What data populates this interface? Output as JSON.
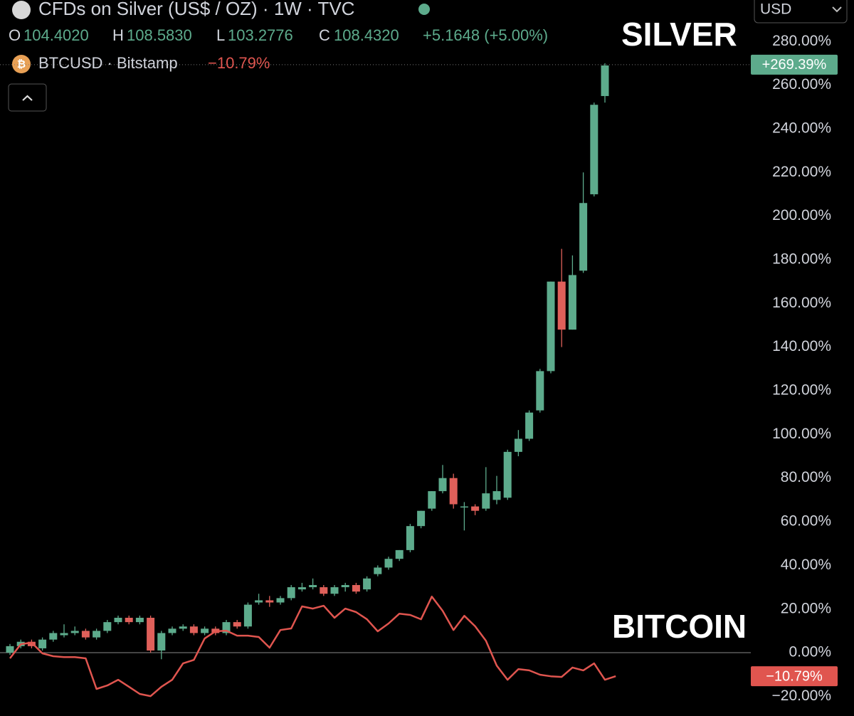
{
  "chart_data": {
    "type": "candlestick",
    "title": "CFDs on Silver (US$ / OZ) · 1W · TVC",
    "ohlc_labels": {
      "open": "104.4020",
      "high": "108.5830",
      "low": "103.2776",
      "close": "108.4320",
      "change": "+5.1648 (+5.00%)"
    },
    "currency": "USD",
    "annotations": [
      "SILVER",
      "BITCOIN"
    ],
    "up_color": "#5dab8c",
    "down_color": "#e0605a",
    "ylim": [
      -29,
      299
    ],
    "yticks": [
      {
        "value": -20,
        "label": "−20.00%"
      },
      {
        "value": 0,
        "label": "0.00%"
      },
      {
        "value": 20,
        "label": "20.00%"
      },
      {
        "value": 40,
        "label": "40.00%"
      },
      {
        "value": 60,
        "label": "60.00%"
      },
      {
        "value": 80,
        "label": "80.00%"
      },
      {
        "value": 100,
        "label": "100.00%"
      },
      {
        "value": 120,
        "label": "120.00%"
      },
      {
        "value": 140,
        "label": "140.00%"
      },
      {
        "value": 160,
        "label": "160.00%"
      },
      {
        "value": 180,
        "label": "180.00%"
      },
      {
        "value": 200,
        "label": "200.00%"
      },
      {
        "value": 220,
        "label": "220.00%"
      },
      {
        "value": 240,
        "label": "240.00%"
      },
      {
        "value": 260,
        "label": "260.00%"
      },
      {
        "value": 280,
        "label": "280.00%"
      }
    ],
    "series": [
      {
        "name": "CFDs on Silver",
        "type": "candlestick",
        "last_value": 269.39,
        "last_label": "+269.39%",
        "open": [
          0,
          3,
          5,
          2,
          6,
          8,
          9,
          10,
          7,
          10,
          14,
          16,
          14,
          16,
          1,
          9,
          11,
          12,
          9,
          11,
          9,
          14,
          12,
          23,
          24,
          23,
          25,
          29,
          30,
          30,
          27,
          30,
          31,
          29,
          36,
          39,
          43,
          47,
          58,
          66,
          74,
          80,
          67,
          67,
          66,
          70,
          71,
          92,
          98,
          111,
          129,
          170,
          148,
          175,
          210,
          255
        ],
        "high": [
          4,
          6,
          6,
          7,
          10,
          13,
          12,
          11,
          11,
          15,
          17,
          17,
          17,
          17,
          10,
          12,
          13,
          13,
          12,
          12,
          15,
          15,
          23,
          27,
          26,
          26,
          31,
          32,
          34,
          31,
          31,
          32,
          32,
          35,
          40,
          44,
          47,
          59,
          65,
          74,
          86,
          82,
          69,
          68,
          85,
          81,
          93,
          102,
          111,
          130,
          170,
          185,
          182,
          220,
          252,
          270
        ],
        "low": [
          -1,
          2,
          2,
          1,
          5,
          7,
          8,
          6,
          6,
          9,
          13,
          13,
          13,
          0,
          -3,
          8,
          10,
          8,
          8,
          8,
          8,
          11,
          11,
          22,
          21,
          22,
          24,
          28,
          29,
          26,
          26,
          28,
          27,
          28,
          35,
          38,
          42,
          46,
          57,
          65,
          73,
          66,
          56,
          63,
          65,
          68,
          70,
          90,
          97,
          110,
          128,
          140,
          148,
          174,
          209,
          252
        ],
        "close": [
          3,
          5,
          3,
          6,
          9,
          9,
          10,
          7,
          10,
          14,
          16,
          14,
          16,
          1,
          9,
          11,
          12,
          9,
          11,
          9,
          14,
          12,
          22,
          24,
          23,
          25,
          30,
          30,
          31,
          27,
          30,
          31,
          28,
          34,
          39,
          43,
          47,
          58,
          65,
          74,
          80,
          68,
          67,
          65,
          73,
          74,
          92,
          98,
          110,
          129,
          170,
          148,
          173,
          206,
          251,
          269
        ]
      },
      {
        "name": "BTCUSD · Bitstamp",
        "type": "line",
        "color": "#e0554f",
        "last_value": -10.79,
        "last_label": "−10.79%",
        "values": [
          -2.6,
          3.9,
          4.6,
          -0.3,
          -1.6,
          -2.0,
          -2.0,
          -2.6,
          -16.6,
          -15.0,
          -12.4,
          -15.6,
          -18.9,
          -19.9,
          -15.6,
          -12.4,
          -4.9,
          -3.3,
          6.5,
          9.8,
          10.1,
          7.8,
          7.8,
          7.2,
          2.3,
          10.4,
          11.1,
          21.2,
          20.2,
          21.5,
          16.0,
          20.2,
          18.6,
          15.3,
          9.8,
          13.4,
          17.9,
          17.3,
          15.3,
          25.7,
          19.2,
          10.4,
          16.9,
          12.1,
          5.5,
          -5.9,
          -12.4,
          -7.5,
          -8.1,
          -10.1,
          -10.8,
          -11.1,
          -6.8,
          -8.1,
          -4.9,
          -12.4,
          -10.79
        ]
      }
    ]
  }
}
